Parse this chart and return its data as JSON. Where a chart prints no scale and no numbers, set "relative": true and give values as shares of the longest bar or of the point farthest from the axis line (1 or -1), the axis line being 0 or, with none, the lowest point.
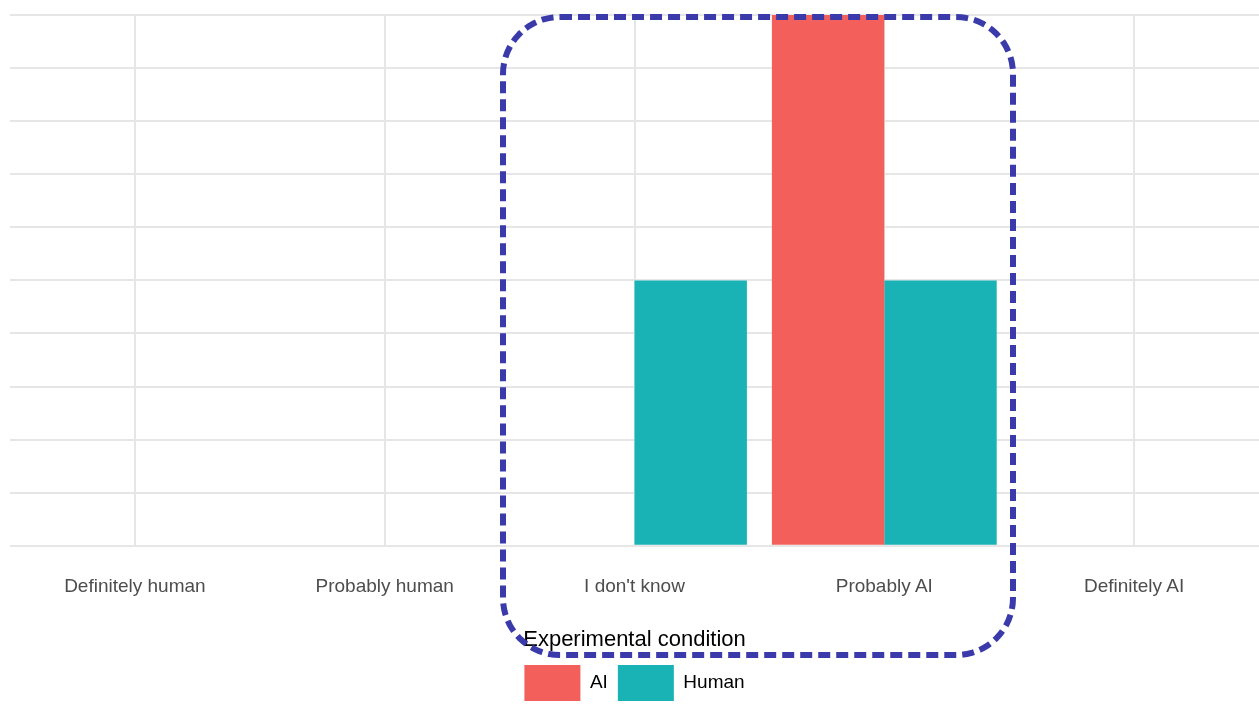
{
  "chart_data": {
    "type": "bar",
    "relative": true,
    "categories": [
      "Definitely human",
      "Probably human",
      "I don't know",
      "Probably AI",
      "Definitely AI"
    ],
    "series": [
      {
        "name": "AI",
        "color": "#f35f5a",
        "values": [
          null,
          null,
          null,
          1,
          null
        ]
      },
      {
        "name": "Human",
        "color": "#19b3b5",
        "values": [
          null,
          null,
          0.5,
          0.5,
          null
        ]
      }
    ],
    "legend_title": "Experimental condition",
    "legend": "bottom",
    "grid": true
  }
}
